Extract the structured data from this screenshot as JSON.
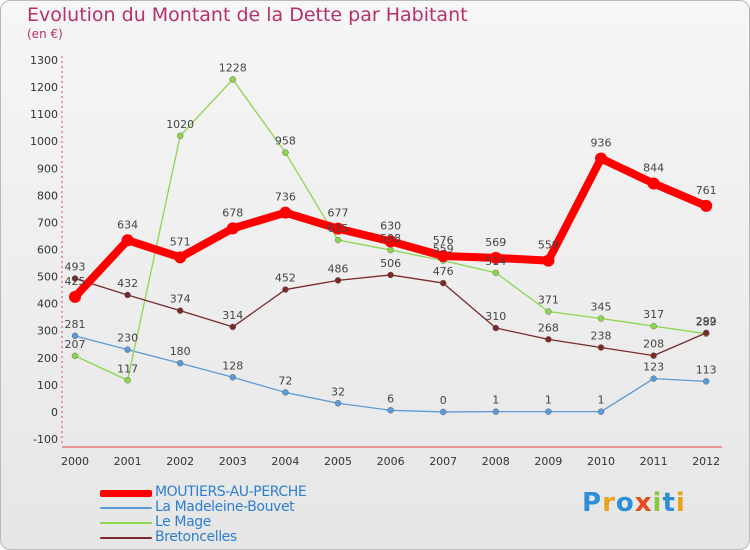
{
  "chart_data": {
    "type": "line",
    "title": "Evolution du Montant de la Dette par Habitant",
    "subtitle": "(en €)",
    "x": [
      "2000",
      "2001",
      "2002",
      "2003",
      "2004",
      "2005",
      "2006",
      "2007",
      "2008",
      "2009",
      "2010",
      "2011",
      "2012"
    ],
    "ylim": [
      -100,
      1300
    ],
    "yticks": [
      "-100",
      "0",
      "100",
      "200",
      "300",
      "400",
      "500",
      "600",
      "700",
      "800",
      "900",
      "1000",
      "1100",
      "1200",
      "1300"
    ],
    "grid": false,
    "legend_position": "bottom-left",
    "series": [
      {
        "name": "MOUTIERS-AU-PERCHE",
        "color": "#ff0000",
        "values": [
          425,
          634,
          571,
          678,
          736,
          677,
          630,
          576,
          569,
          559,
          936,
          844,
          761
        ]
      },
      {
        "name": "La Madeleine-Bouvet",
        "color": "#5b9bd5",
        "values": [
          281,
          230,
          180,
          128,
          72,
          32,
          6,
          0,
          1,
          1,
          1,
          123,
          113
        ]
      },
      {
        "name": "Le Mage",
        "color": "#8cd64d",
        "values": [
          207,
          117,
          1020,
          1228,
          958,
          635,
          598,
          559,
          514,
          371,
          345,
          317,
          289
        ]
      },
      {
        "name": "Bretoncelles",
        "color": "#7a2a2a",
        "values": [
          493,
          432,
          374,
          314,
          452,
          486,
          506,
          476,
          310,
          268,
          238,
          208,
          292
        ]
      }
    ]
  },
  "brand": {
    "letters": [
      "P",
      "r",
      "o",
      "x",
      "i",
      "t",
      "i"
    ],
    "colors": [
      "#2e8fd6",
      "#e8a21c",
      "#2e8fd6",
      "#e84a1c",
      "#8cc63f",
      "#2e8fd6",
      "#e8a21c"
    ]
  }
}
